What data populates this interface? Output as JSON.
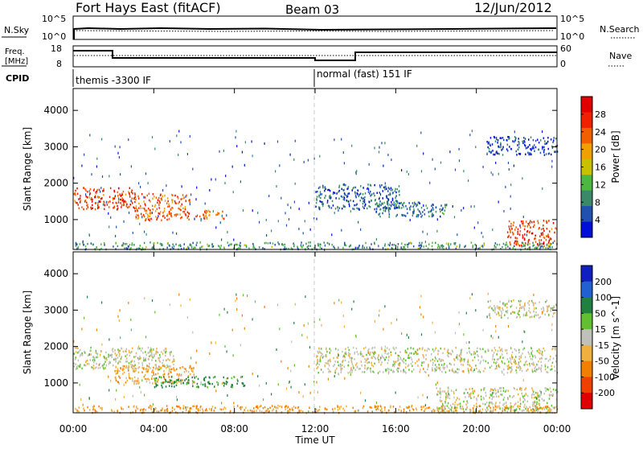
{
  "header": {
    "station": "Fort Hays East (fitACF)",
    "beam": "Beam 03",
    "date": "12/Jun/2012"
  },
  "top_panels": {
    "nsky_label": "N.Sky",
    "nsky_ticks": [
      "10^5",
      "10^0"
    ],
    "nsearch_label": "N.Search",
    "freq_label": "Freq.",
    "freq_units": "[MHz]",
    "freq_ticks": [
      "18",
      "8"
    ],
    "nave_label": "Nave",
    "nave_ticks": [
      "60",
      "0"
    ],
    "cpid_label": "CPID",
    "cpid_segments": [
      "themis -3300 IF",
      "normal (fast) 151 IF"
    ]
  },
  "colors": {
    "power_scale": [
      "#0010d8",
      "#2050b0",
      "#3a8a6a",
      "#4cb840",
      "#c8c000",
      "#f0a000",
      "#f06000",
      "#f02000",
      "#e00000"
    ],
    "velocity_scale": [
      "#1020c0",
      "#2060d0",
      "#208040",
      "#60c030",
      "#c0c0b8",
      "#f0b040",
      "#f08000",
      "#f04000",
      "#e00000"
    ],
    "background": "#ffffff",
    "frame": "#000000"
  },
  "chart_data": [
    {
      "type": "heatmap",
      "panel": "power",
      "xlabel": "",
      "ylabel": "Slant Range [km]",
      "xlim": [
        0,
        24
      ],
      "ylim": [
        180,
        4600
      ],
      "y_ticks": [
        "1000",
        "2000",
        "3000",
        "4000"
      ],
      "colorbar": {
        "label": "Power [dB]",
        "ticks": [
          "4",
          "8",
          "12",
          "16",
          "20",
          "24",
          "28"
        ]
      },
      "regions": [
        {
          "t": [
            0.0,
            3.0
          ],
          "r": [
            1300,
            1900
          ],
          "level": 28
        },
        {
          "t": [
            3.0,
            5.8
          ],
          "r": [
            1000,
            1750
          ],
          "level": 26
        },
        {
          "t": [
            6.0,
            7.6
          ],
          "r": [
            1050,
            1300
          ],
          "level": 25
        },
        {
          "t": [
            12.0,
            16.2
          ],
          "r": [
            1300,
            2000
          ],
          "level": 8
        },
        {
          "t": [
            15.0,
            18.5
          ],
          "r": [
            1100,
            1500
          ],
          "level": 10
        },
        {
          "t": [
            20.5,
            24.0
          ],
          "r": [
            2800,
            3300
          ],
          "level": 6
        },
        {
          "t": [
            21.5,
            24.0
          ],
          "r": [
            300,
            1000
          ],
          "level": 28
        },
        {
          "t": [
            0.0,
            24.0
          ],
          "r": [
            200,
            400
          ],
          "level": 12
        }
      ]
    },
    {
      "type": "heatmap",
      "panel": "velocity",
      "xlabel": "Time UT",
      "ylabel": "Slant Range [km]",
      "xlim": [
        0,
        24
      ],
      "ylim": [
        180,
        4600
      ],
      "x_ticks": [
        "00:00",
        "04:00",
        "08:00",
        "12:00",
        "16:00",
        "20:00",
        "00:00"
      ],
      "y_ticks": [
        "1000",
        "2000",
        "3000",
        "4000"
      ],
      "colorbar": {
        "label": "Velocity [m s^-1]",
        "ticks": [
          "200",
          "100",
          "50",
          "15",
          "-15",
          "-50",
          "-100",
          "-200"
        ]
      },
      "regions": [
        {
          "t": [
            0.0,
            5.0
          ],
          "r": [
            1400,
            2000
          ],
          "level": 0
        },
        {
          "t": [
            2.0,
            6.0
          ],
          "r": [
            1000,
            1500
          ],
          "level": -40
        },
        {
          "t": [
            4.0,
            8.5
          ],
          "r": [
            900,
            1200
          ],
          "level": 60
        },
        {
          "t": [
            12.0,
            24.0
          ],
          "r": [
            1300,
            2000
          ],
          "level": 0
        },
        {
          "t": [
            18.0,
            24.0
          ],
          "r": [
            200,
            900
          ],
          "level": 0
        },
        {
          "t": [
            20.5,
            24.0
          ],
          "r": [
            2800,
            3300
          ],
          "level": 0
        },
        {
          "t": [
            0.0,
            24.0
          ],
          "r": [
            200,
            400
          ],
          "level": -50
        }
      ]
    }
  ]
}
